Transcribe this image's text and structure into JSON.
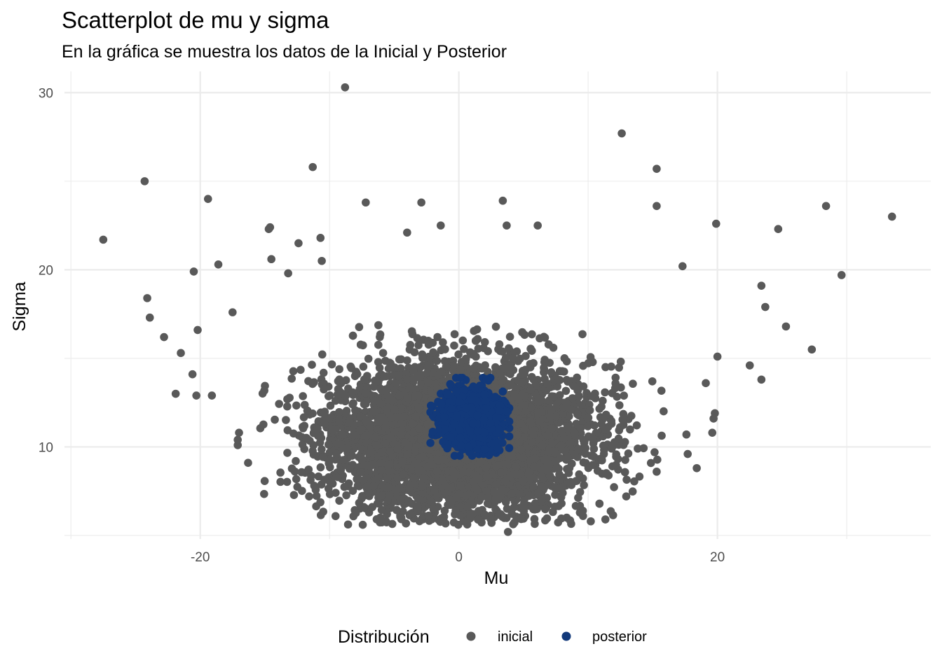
{
  "chart_data": {
    "type": "scatter",
    "title": "Scatterplot de mu y sigma",
    "subtitle": "En la gráfica se muestra los datos de la Inicial y Posterior",
    "xlabel": "Mu",
    "ylabel": "Sigma",
    "xlim": [
      -30.5,
      36.5
    ],
    "ylim": [
      4.8,
      31.2
    ],
    "xticks": [
      -20,
      0,
      20
    ],
    "xtick_labels": [
      "-20",
      "0",
      "20"
    ],
    "yticks": [
      10,
      20,
      30
    ],
    "ytick_labels": [
      "10",
      "20",
      "30"
    ],
    "grid": true,
    "legend": {
      "title": "Distribución",
      "placement": "bottom",
      "entries": [
        {
          "label": "inicial",
          "color": "#595959"
        },
        {
          "label": "posterior",
          "color": "#12397a"
        }
      ]
    },
    "series": [
      {
        "name": "inicial",
        "color": "#595959",
        "outliers": [
          [
            -8.8,
            30.3
          ],
          [
            12.6,
            27.7
          ],
          [
            -11.3,
            25.8
          ],
          [
            15.3,
            25.7
          ],
          [
            -24.3,
            25.0
          ],
          [
            -19.4,
            24.0
          ],
          [
            15.3,
            23.6
          ],
          [
            3.4,
            23.9
          ],
          [
            -2.9,
            23.8
          ],
          [
            -7.2,
            23.8
          ],
          [
            28.4,
            23.6
          ],
          [
            33.5,
            23.0
          ],
          [
            -27.5,
            21.7
          ],
          [
            19.9,
            22.6
          ],
          [
            24.7,
            22.3
          ],
          [
            -14.6,
            22.4
          ],
          [
            -14.7,
            22.3
          ],
          [
            -10.7,
            21.8
          ],
          [
            -12.4,
            21.5
          ],
          [
            -4.0,
            22.1
          ],
          [
            -1.4,
            22.5
          ],
          [
            6.1,
            22.5
          ],
          [
            3.7,
            22.5
          ],
          [
            -18.6,
            20.3
          ],
          [
            -20.5,
            19.9
          ],
          [
            -10.6,
            20.5
          ],
          [
            -14.5,
            20.6
          ],
          [
            -13.2,
            19.8
          ],
          [
            29.6,
            19.7
          ],
          [
            17.3,
            20.2
          ],
          [
            23.4,
            19.1
          ],
          [
            -24.1,
            18.4
          ],
          [
            23.7,
            17.9
          ],
          [
            -23.9,
            17.3
          ],
          [
            -17.5,
            17.6
          ],
          [
            25.3,
            16.8
          ],
          [
            -22.8,
            16.2
          ],
          [
            -20.2,
            16.6
          ],
          [
            27.3,
            15.5
          ],
          [
            -21.5,
            15.3
          ],
          [
            20.0,
            15.1
          ],
          [
            22.5,
            14.6
          ],
          [
            -20.6,
            14.1
          ],
          [
            23.4,
            13.8
          ],
          [
            19.1,
            13.6
          ],
          [
            -21.9,
            13.0
          ],
          [
            -19.1,
            12.9
          ],
          [
            -20.3,
            12.9
          ],
          [
            17.7,
            9.6
          ],
          [
            18.4,
            8.8
          ],
          [
            19.8,
            11.9
          ],
          [
            19.7,
            11.6
          ],
          [
            19.6,
            10.8
          ],
          [
            17.6,
            10.7
          ],
          [
            15.3,
            8.6
          ],
          [
            3.8,
            5.2
          ],
          [
            -16.3,
            9.1
          ],
          [
            -17.1,
            10.1
          ],
          [
            -17.1,
            10.4
          ],
          [
            -17.0,
            10.8
          ]
        ],
        "cluster": {
          "n": 4500,
          "mu_mean": 0.0,
          "mu_sd": 5.0,
          "sigma_mean": 10.5,
          "sigma_sd": 2.1,
          "sigma_min": 5.6
        }
      },
      {
        "name": "posterior",
        "color": "#12397a",
        "cluster": {
          "n": 1200,
          "mu_mean": 0.9,
          "mu_sd": 1.1,
          "sigma_mean": 11.6,
          "sigma_sd": 0.8,
          "mu_range": [
            -2.2,
            3.9
          ],
          "sigma_range": [
            9.5,
            13.9
          ]
        }
      }
    ]
  }
}
